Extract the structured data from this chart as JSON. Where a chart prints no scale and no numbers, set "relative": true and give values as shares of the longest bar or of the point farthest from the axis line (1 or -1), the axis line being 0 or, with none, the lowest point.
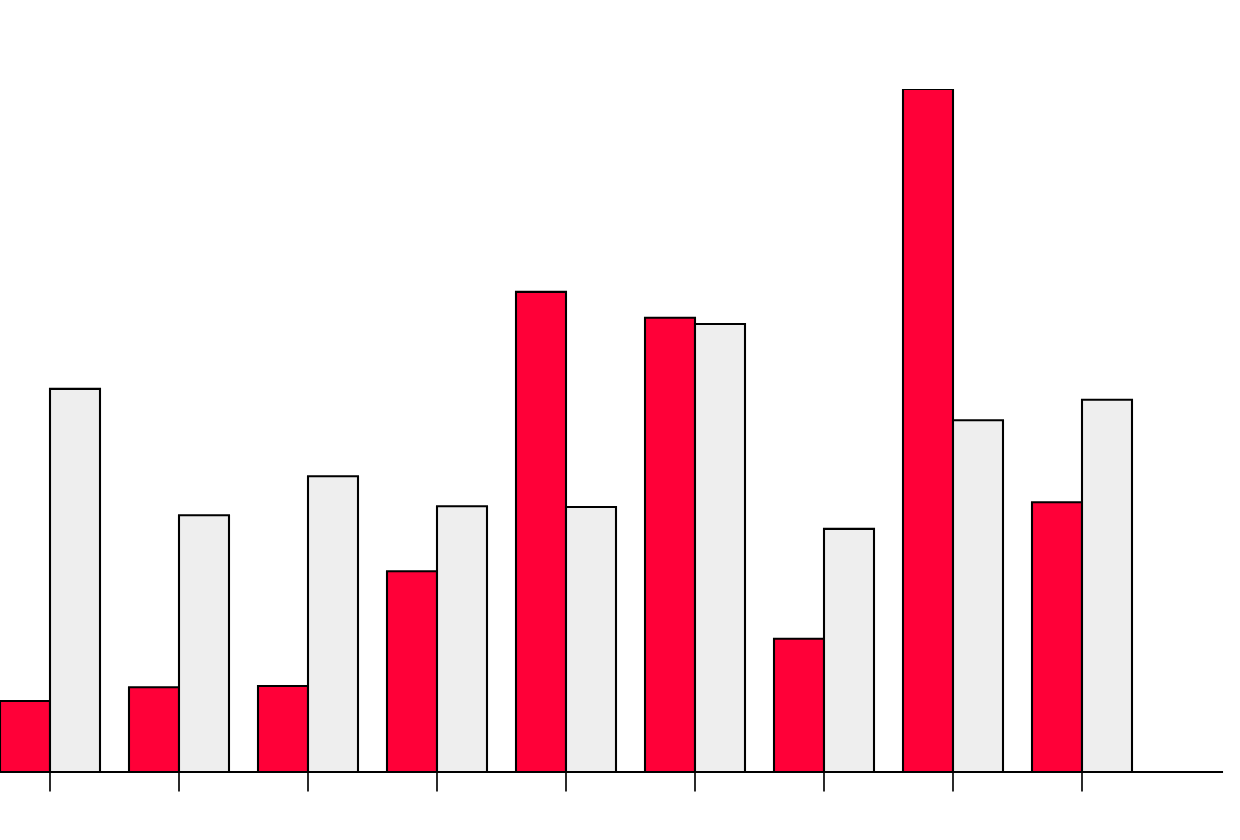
{
  "chart_data": {
    "type": "bar",
    "relative": true,
    "categories": [
      null,
      null,
      null,
      null,
      null,
      null,
      null,
      null,
      null
    ],
    "series": [
      {
        "color": "#ff0038",
        "values": [
          0.104,
          0.124,
          0.126,
          0.294,
          0.703,
          0.665,
          0.195,
          1,
          0.395
        ]
      },
      {
        "color": "#eeeeee",
        "values": [
          0.561,
          0.376,
          0.433,
          0.389,
          0.388,
          0.656,
          0.356,
          0.515,
          0.545
        ]
      }
    ]
  }
}
